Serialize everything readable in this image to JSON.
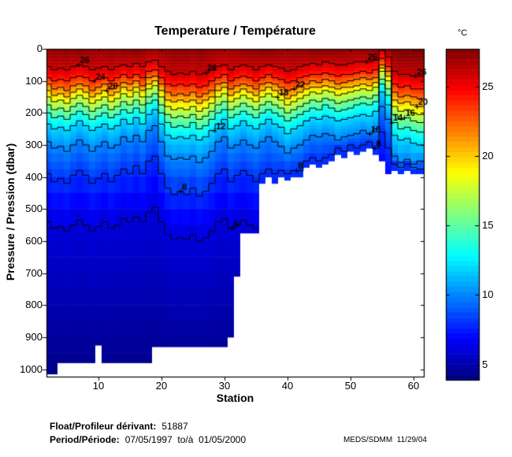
{
  "title": "Temperature / Température",
  "axes": {
    "x": {
      "label": "Station",
      "tick_values": [
        10,
        20,
        30,
        40,
        50,
        60
      ],
      "range_min": 1.7,
      "range_max": 61.6
    },
    "y": {
      "label": "Pressure / Pression (dbar)",
      "tick_values": [
        0,
        100,
        200,
        300,
        400,
        500,
        600,
        700,
        800,
        900,
        1000
      ],
      "range_min": 0,
      "range_max": 1023
    }
  },
  "colorbar": {
    "unit_label": "°C",
    "tick_values": [
      5,
      10,
      15,
      20,
      25
    ],
    "value_min": 3.9,
    "value_max": 27.7
  },
  "footer": {
    "float_label": "Float/Profileur dérivant:",
    "float_value": "51887",
    "period_label": "Period/Période:",
    "period_value": "07/05/1997  to/à  01/05/2000",
    "credit": "MEDS/SDMM  11/29/04"
  },
  "chart_data": {
    "type": "heatmap",
    "title": "Temperature / Température",
    "xlabel": "Station",
    "ylabel": "Pressure / Pression (dbar)",
    "colormap": "jet",
    "grid": false,
    "legend_position": "colorbar-right",
    "color_axis": [
      3.9,
      27.7
    ],
    "station_start": 1,
    "station_count": 61,
    "bottom_temp": 3.8,
    "surface_temp": [
      27.0,
      27.2,
      27.4,
      27.3,
      27.5,
      27.3,
      27.6,
      27.4,
      27.2,
      27.0,
      27.2,
      27.4,
      27.2,
      27.6,
      27.4,
      27.7,
      27.4,
      27.0,
      26.9,
      27.1,
      27.3,
      27.5,
      27.4,
      27.5,
      27.3,
      27.6,
      27.4,
      27.2,
      27.0,
      26.9,
      27.0,
      27.2,
      27.4,
      27.6,
      27.4,
      27.7,
      27.8,
      27.5,
      27.2,
      27.0,
      27.2,
      27.4,
      27.3,
      27.6,
      27.5,
      27.7,
      27.6,
      27.4,
      27.5,
      27.3,
      27.2,
      27.4,
      27.3,
      27.5,
      27.6,
      27.4,
      27.8,
      28.0,
      27.9,
      28.0,
      28.0
    ],
    "max_depth": [
      1015,
      1015,
      1015,
      980,
      980,
      980,
      980,
      980,
      980,
      925,
      980,
      980,
      980,
      980,
      980,
      980,
      980,
      980,
      930,
      930,
      930,
      930,
      930,
      930,
      930,
      930,
      930,
      930,
      930,
      930,
      900,
      710,
      575,
      575,
      575,
      420,
      400,
      420,
      400,
      410,
      400,
      400,
      370,
      360,
      370,
      360,
      350,
      330,
      340,
      320,
      330,
      320,
      310,
      330,
      350,
      390,
      380,
      390,
      380,
      390,
      390
    ],
    "isotherm_levels": [
      26,
      24,
      22,
      20,
      18,
      16,
      14,
      12,
      10,
      8,
      6
    ],
    "isotherm_depths": {
      "26": [
        60,
        55,
        65,
        60,
        65,
        55,
        50,
        55,
        65,
        60,
        55,
        65,
        55,
        50,
        55,
        45,
        55,
        40,
        35,
        55,
        70,
        80,
        75,
        80,
        70,
        80,
        75,
        65,
        55,
        50,
        65,
        55,
        50,
        55,
        65,
        55,
        50,
        55,
        60,
        70,
        65,
        55,
        50,
        45,
        50,
        40,
        45,
        50,
        50,
        45,
        40,
        40,
        40,
        35,
        5,
        25,
        70,
        80,
        80,
        85,
        85
      ],
      "24": [
        95,
        90,
        100,
        95,
        100,
        90,
        85,
        90,
        100,
        95,
        90,
        100,
        90,
        80,
        90,
        80,
        90,
        70,
        65,
        90,
        110,
        115,
        110,
        115,
        110,
        120,
        115,
        100,
        90,
        80,
        100,
        90,
        85,
        90,
        100,
        90,
        80,
        90,
        95,
        105,
        100,
        90,
        85,
        80,
        80,
        75,
        80,
        85,
        80,
        80,
        75,
        70,
        75,
        65,
        30,
        55,
        110,
        120,
        115,
        125,
        125
      ],
      "22": [
        120,
        110,
        125,
        120,
        130,
        115,
        110,
        115,
        130,
        120,
        110,
        125,
        115,
        105,
        110,
        100,
        115,
        90,
        85,
        110,
        135,
        145,
        140,
        145,
        135,
        150,
        140,
        130,
        110,
        105,
        125,
        115,
        110,
        115,
        125,
        110,
        105,
        110,
        120,
        130,
        125,
        115,
        110,
        100,
        105,
        95,
        100,
        110,
        105,
        100,
        95,
        90,
        95,
        90,
        50,
        70,
        135,
        150,
        145,
        150,
        155
      ],
      "20": [
        140,
        130,
        145,
        140,
        150,
        135,
        125,
        135,
        150,
        140,
        130,
        145,
        135,
        120,
        130,
        120,
        130,
        110,
        100,
        130,
        160,
        165,
        160,
        165,
        160,
        170,
        160,
        150,
        130,
        120,
        145,
        135,
        125,
        135,
        145,
        130,
        120,
        130,
        140,
        155,
        145,
        135,
        125,
        120,
        120,
        115,
        120,
        125,
        120,
        120,
        115,
        110,
        115,
        105,
        60,
        85,
        160,
        170,
        165,
        175,
        180
      ],
      "18": [
        160,
        150,
        165,
        160,
        170,
        155,
        145,
        155,
        170,
        160,
        150,
        165,
        155,
        140,
        150,
        135,
        150,
        125,
        115,
        150,
        180,
        190,
        185,
        190,
        180,
        195,
        185,
        170,
        150,
        140,
        165,
        155,
        145,
        155,
        165,
        150,
        140,
        150,
        160,
        175,
        165,
        155,
        145,
        135,
        140,
        130,
        135,
        145,
        140,
        135,
        130,
        125,
        130,
        120,
        70,
        100,
        180,
        195,
        190,
        200,
        205
      ],
      "16": [
        185,
        175,
        190,
        185,
        195,
        180,
        170,
        180,
        195,
        185,
        175,
        190,
        180,
        165,
        175,
        160,
        175,
        150,
        140,
        175,
        205,
        215,
        210,
        215,
        205,
        220,
        210,
        195,
        175,
        165,
        190,
        180,
        170,
        180,
        190,
        175,
        165,
        175,
        185,
        200,
        190,
        180,
        170,
        160,
        165,
        155,
        160,
        170,
        165,
        160,
        155,
        150,
        155,
        145,
        95,
        125,
        205,
        220,
        215,
        225,
        230
      ],
      "14": [
        210,
        200,
        215,
        210,
        220,
        205,
        195,
        205,
        220,
        210,
        200,
        215,
        205,
        190,
        200,
        185,
        200,
        170,
        160,
        200,
        230,
        245,
        240,
        245,
        230,
        250,
        240,
        220,
        200,
        190,
        215,
        205,
        195,
        205,
        215,
        200,
        190,
        200,
        210,
        225,
        215,
        205,
        195,
        185,
        190,
        175,
        185,
        195,
        190,
        185,
        175,
        170,
        175,
        165,
        110,
        145,
        230,
        250,
        245,
        255,
        260
      ],
      "12": [
        245,
        235,
        250,
        245,
        255,
        240,
        225,
        240,
        255,
        245,
        235,
        250,
        240,
        220,
        235,
        215,
        235,
        205,
        190,
        235,
        270,
        280,
        275,
        280,
        270,
        285,
        275,
        255,
        235,
        220,
        250,
        240,
        225,
        240,
        250,
        235,
        220,
        235,
        245,
        265,
        250,
        240,
        225,
        215,
        220,
        210,
        215,
        225,
        220,
        215,
        210,
        205,
        210,
        195,
        135,
        175,
        270,
        285,
        280,
        295,
        300
      ],
      "10": [
        305,
        290,
        310,
        305,
        320,
        300,
        285,
        300,
        320,
        305,
        290,
        310,
        300,
        275,
        290,
        270,
        290,
        255,
        240,
        290,
        335,
        345,
        340,
        345,
        335,
        355,
        340,
        320,
        290,
        275,
        310,
        300,
        285,
        300,
        310,
        290,
        275,
        290,
        305,
        325,
        310,
        300,
        285,
        270,
        275,
        265,
        270,
        285,
        275,
        270,
        265,
        255,
        265,
        250,
        180,
        220,
        335,
        355,
        345,
        360,
        350
      ],
      "8": [
        405,
        390,
        415,
        405,
        420,
        395,
        380,
        395,
        420,
        405,
        390,
        415,
        395,
        375,
        390,
        365,
        390,
        350,
        335,
        390,
        435,
        455,
        445,
        455,
        435,
        460,
        445,
        420,
        390,
        375,
        415,
        395,
        380,
        395,
        415,
        390,
        375,
        390,
        380,
        390,
        380,
        380,
        350,
        340,
        350,
        340,
        330,
        310,
        320,
        300,
        310,
        300,
        290,
        310,
        260,
        310,
        360,
        370,
        360,
        370,
        375
      ],
      "6": [
        555,
        540,
        560,
        555,
        570,
        550,
        535,
        550,
        570,
        555,
        540,
        560,
        550,
        530,
        540,
        525,
        540,
        510,
        495,
        540,
        580,
        595,
        590,
        595,
        580,
        600,
        590,
        570,
        540,
        530,
        560,
        550,
        535,
        550,
        560,
        540,
        530,
        540,
        555,
        575,
        560,
        550,
        535,
        520,
        530,
        515,
        520,
        535,
        530,
        520,
        515,
        510,
        515,
        500,
        440,
        480,
        580,
        600,
        595,
        605,
        610
      ]
    },
    "contour_labels": [
      {
        "t": 26,
        "s": 6.8
      },
      {
        "t": 24,
        "s": 9.3
      },
      {
        "t": 20,
        "s": 11.3
      },
      {
        "t": 8,
        "s": 23
      },
      {
        "t": 26,
        "s": 27
      },
      {
        "t": 12,
        "s": 28.4
      },
      {
        "t": 6,
        "s": 31.2
      },
      {
        "t": 18,
        "s": 38.4
      },
      {
        "t": 22,
        "s": 41
      },
      {
        "t": 8,
        "s": 41.4
      },
      {
        "t": 26,
        "s": 52.5
      },
      {
        "t": 10,
        "s": 53
      },
      {
        "t": 8,
        "s": 53.8
      },
      {
        "t": 14,
        "s": 56.5
      },
      {
        "t": 16,
        "s": 58.5
      },
      {
        "t": 26,
        "s": 60.3
      },
      {
        "t": 20,
        "s": 60.5
      }
    ]
  }
}
